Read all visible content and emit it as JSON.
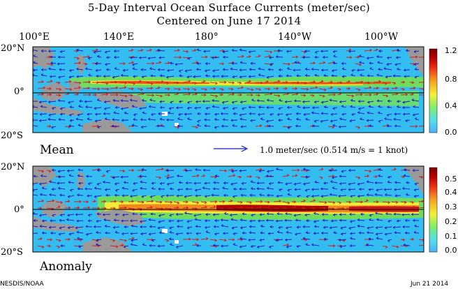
{
  "title": {
    "line1": "5-Day Interval Ocean Surface Currents (meter/sec)",
    "line2": "Centered on June 17 2014"
  },
  "longitude_labels": [
    "100°E",
    "140°E",
    "180°",
    "140°W",
    "100°W"
  ],
  "latitude_labels": [
    "20°N",
    "0°",
    "20°S"
  ],
  "panels": {
    "mean": {
      "label": "Mean",
      "colorbar_ticks": [
        "1.2",
        "0.8",
        "0.4",
        "0.0"
      ]
    },
    "anomaly": {
      "label": "Anomaly",
      "colorbar_ticks": [
        "0.5",
        "0.4",
        "0.3",
        "0.2",
        "0.1",
        "0.0"
      ]
    }
  },
  "scale_label": "1.0 meter/sec  (0.514 m/s = 1 knot)",
  "credit": "NESDIS/NOAA",
  "date_stamp": "Jun 21 2014",
  "colors": {
    "ocean_base": "#33bdf0",
    "land": "#9a9a9a",
    "vector_eastward": "#d81818",
    "vector_westward": "#1818c8",
    "colorbar_stops": [
      "#4fb0ff",
      "#50e0e8",
      "#7fef6a",
      "#f2f23a",
      "#f5a020",
      "#ea2c12",
      "#b00000",
      "#780000"
    ]
  }
}
